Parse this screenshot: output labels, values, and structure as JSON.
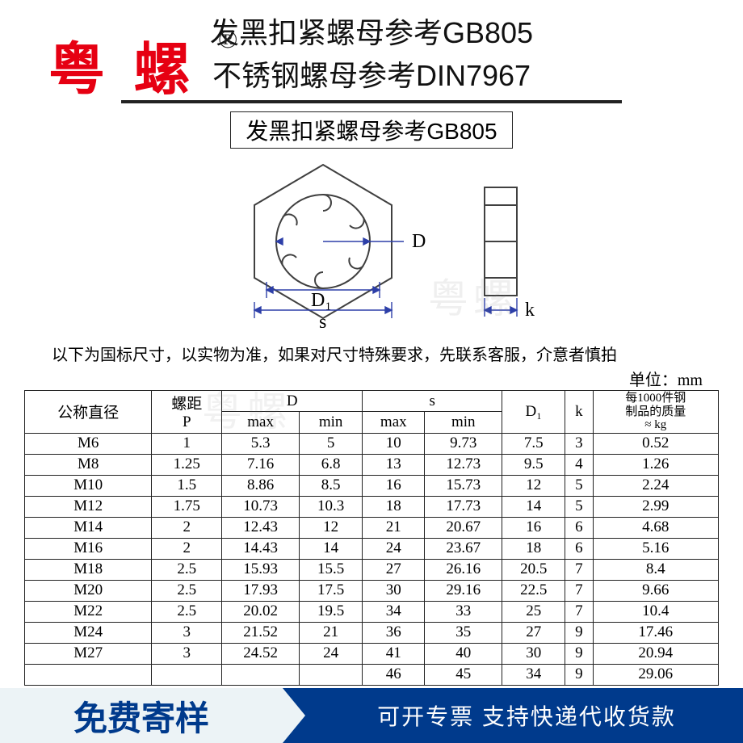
{
  "watermark": {
    "brand": "粤 螺",
    "registered": "®",
    "gray": "粤螺"
  },
  "title": {
    "line1": "发黑扣紧螺母参考GB805",
    "line2": "不锈钢螺母参考DIN7967",
    "sub": "发黑扣紧螺母参考GB805"
  },
  "diagram": {
    "labels": {
      "D": "D",
      "D1": "D₁",
      "s": "s",
      "k": "k"
    },
    "colors": {
      "dimline": "#2d3fa8",
      "part": "#404040"
    }
  },
  "note": "以下为国标尺寸，以实物为准，如果对尺寸特殊要求，先联系客服，介意者慎拍",
  "unit": "单位：mm",
  "table": {
    "headers": {
      "nominal": "公称直径",
      "pitch": "螺距\nP",
      "D": "D",
      "s": "s",
      "D1": "D₁",
      "k": "k",
      "mass": "每1000件钢\n制品的质量\n≈ kg",
      "max": "max",
      "min": "min"
    },
    "rows": [
      [
        "M6",
        "1",
        "5.3",
        "5",
        "10",
        "9.73",
        "7.5",
        "3",
        "0.52"
      ],
      [
        "M8",
        "1.25",
        "7.16",
        "6.8",
        "13",
        "12.73",
        "9.5",
        "4",
        "1.26"
      ],
      [
        "M10",
        "1.5",
        "8.86",
        "8.5",
        "16",
        "15.73",
        "12",
        "5",
        "2.24"
      ],
      [
        "M12",
        "1.75",
        "10.73",
        "10.3",
        "18",
        "17.73",
        "14",
        "5",
        "2.99"
      ],
      [
        "M14",
        "2",
        "12.43",
        "12",
        "21",
        "20.67",
        "16",
        "6",
        "4.68"
      ],
      [
        "M16",
        "2",
        "14.43",
        "14",
        "24",
        "23.67",
        "18",
        "6",
        "5.16"
      ],
      [
        "M18",
        "2.5",
        "15.93",
        "15.5",
        "27",
        "26.16",
        "20.5",
        "7",
        "8.4"
      ],
      [
        "M20",
        "2.5",
        "17.93",
        "17.5",
        "30",
        "29.16",
        "22.5",
        "7",
        "9.66"
      ],
      [
        "M22",
        "2.5",
        "20.02",
        "19.5",
        "34",
        "33",
        "25",
        "7",
        "10.4"
      ],
      [
        "M24",
        "3",
        "21.52",
        "21",
        "36",
        "35",
        "27",
        "9",
        "17.46"
      ],
      [
        "M27",
        "3",
        "24.52",
        "24",
        "41",
        "40",
        "30",
        "9",
        "20.94"
      ],
      [
        "",
        "",
        "",
        "",
        "46",
        "45",
        "34",
        "9",
        "29.06"
      ]
    ]
  },
  "banner": {
    "left": "免费寄样",
    "right": "可开专票 支持快递代收货款"
  }
}
